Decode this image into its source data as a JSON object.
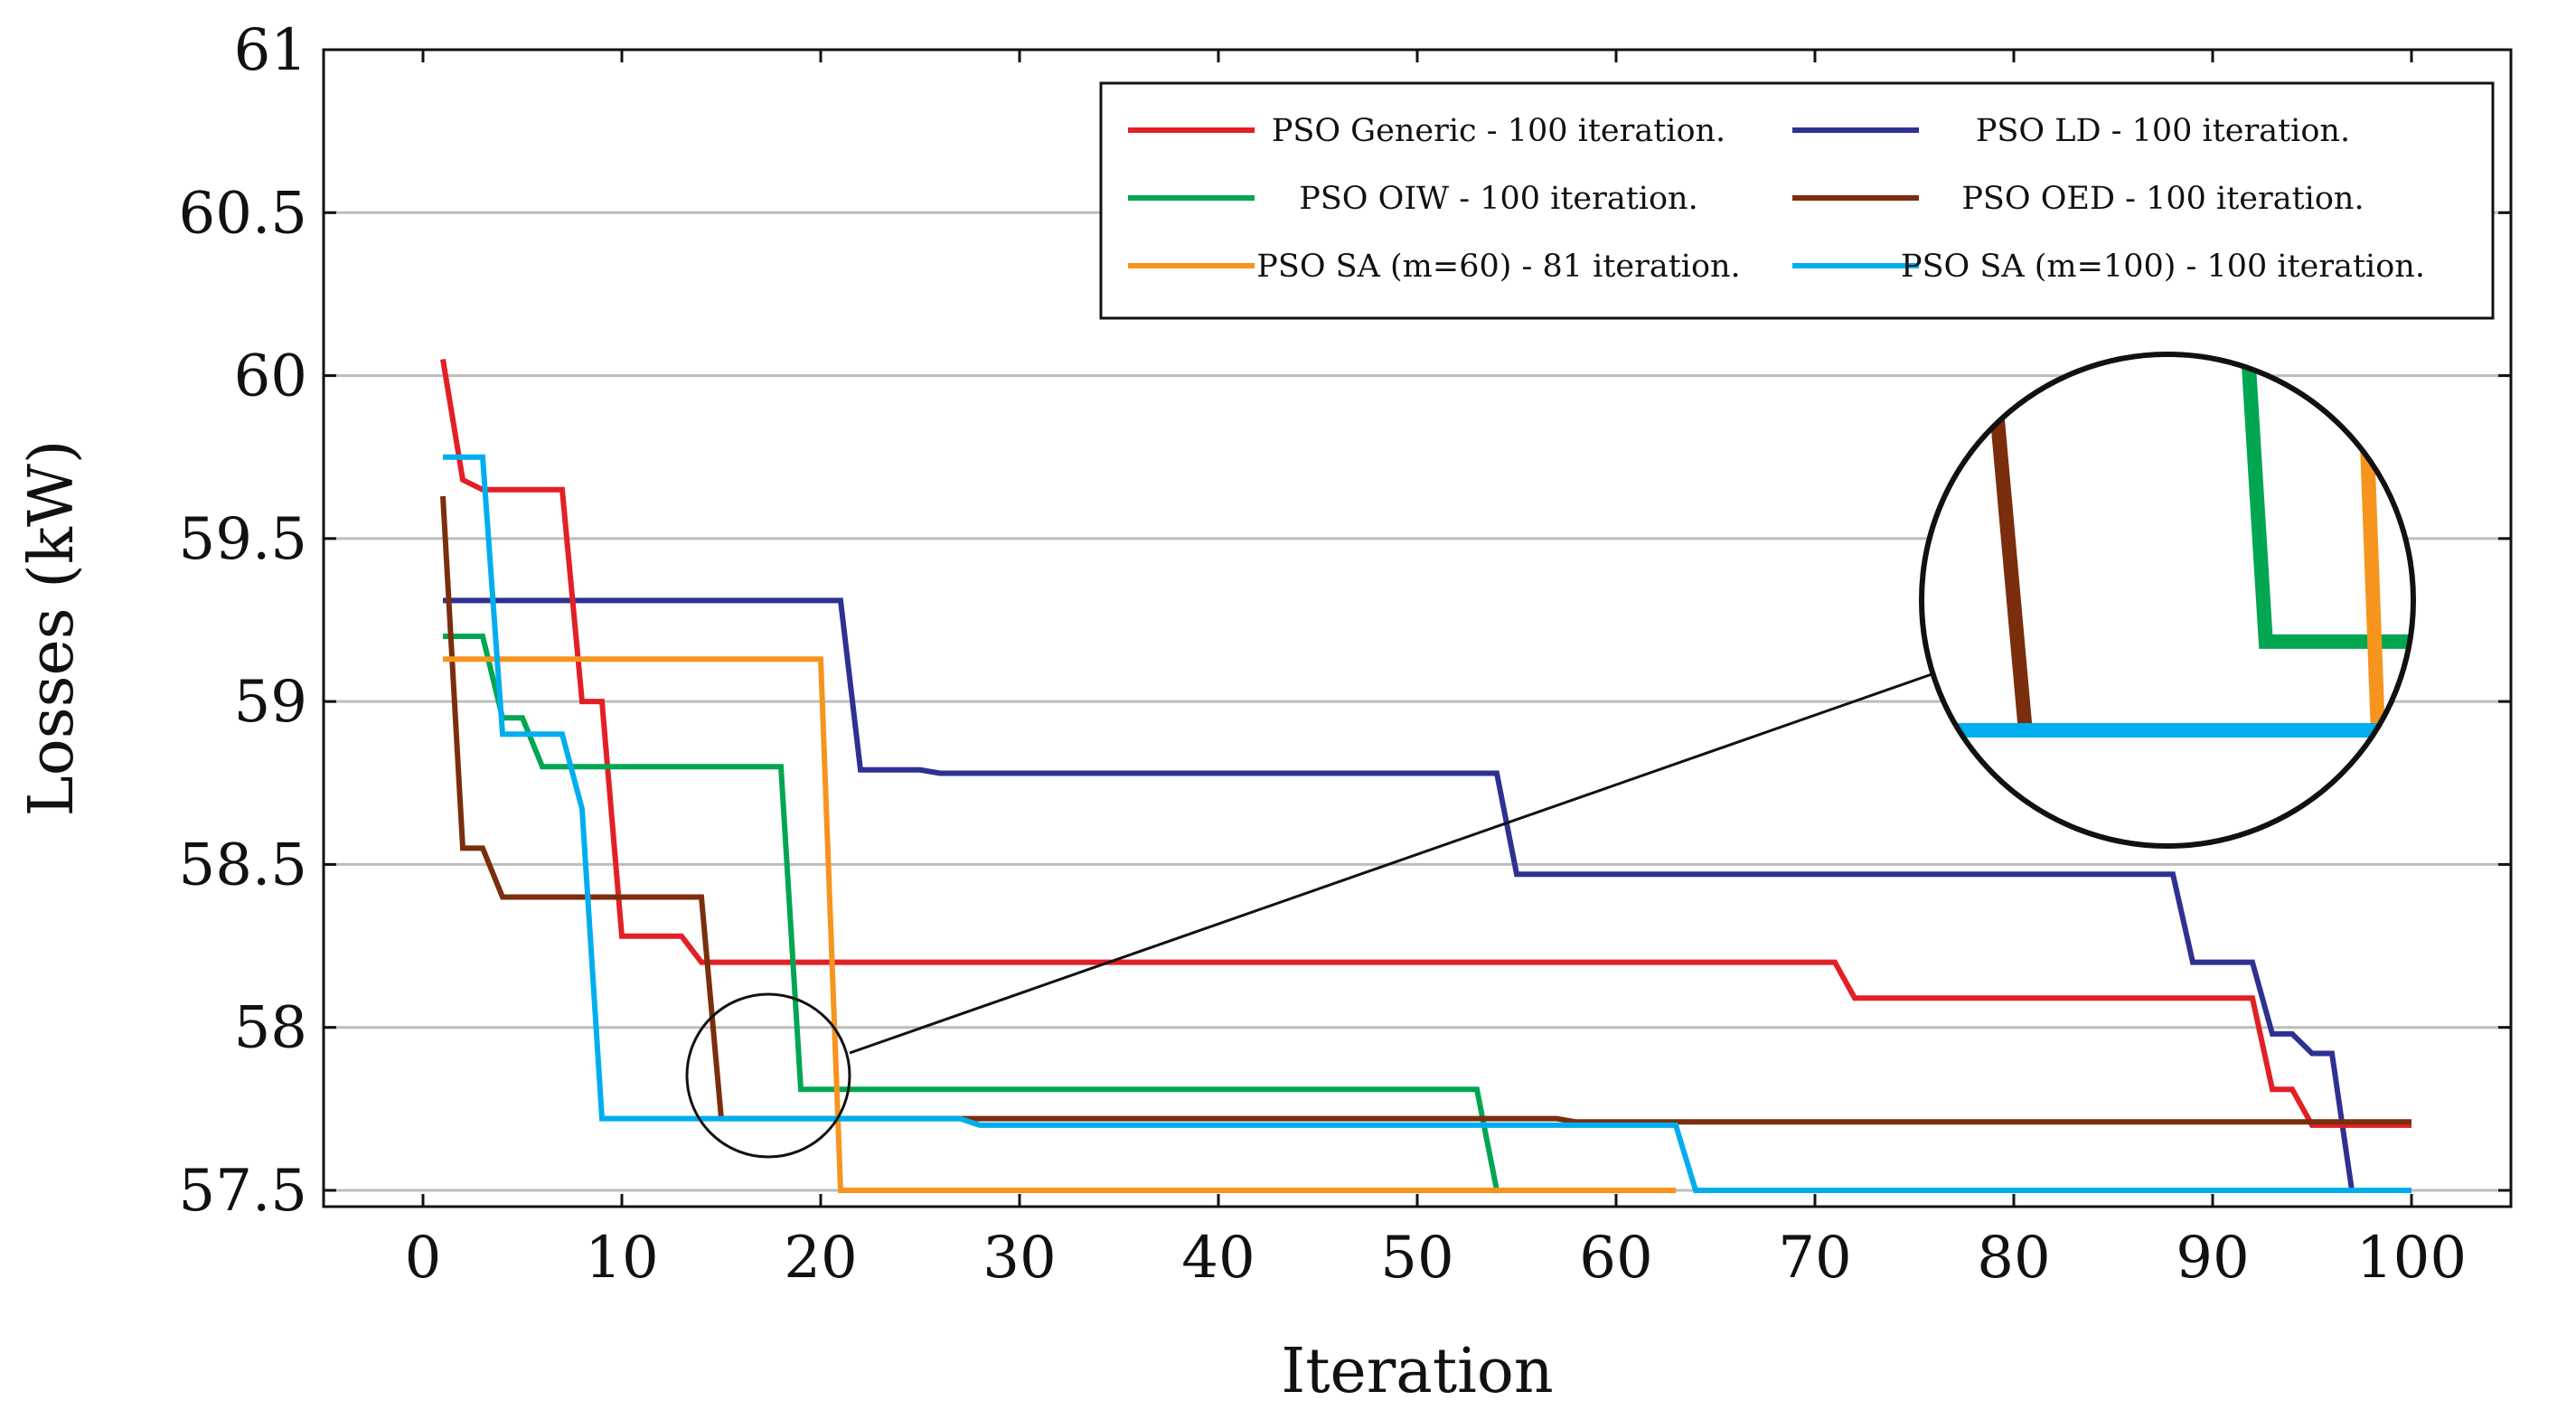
{
  "chart_data": {
    "type": "line",
    "title": "",
    "xlabel": "Iteration",
    "ylabel": "Losses (kW)",
    "xlim": [
      -5,
      105
    ],
    "ylim": [
      57.45,
      61
    ],
    "xticks": [
      0,
      10,
      20,
      30,
      40,
      50,
      60,
      70,
      80,
      90,
      100
    ],
    "yticks": [
      57.5,
      58,
      58.5,
      59,
      59.5,
      60,
      60.5,
      61
    ],
    "ytick_labels": [
      "57.5",
      "58",
      "58.5",
      "59",
      "59.5",
      "60",
      "60.5",
      "61"
    ],
    "grid": "horizontal",
    "legend_position": "top-right",
    "series": [
      {
        "name": "PSO Generic - 100 iteration.",
        "color": "#e31f26",
        "x": [
          1,
          2,
          3,
          7,
          8,
          9,
          10,
          13,
          14,
          71,
          72,
          92,
          93,
          94,
          95,
          100
        ],
        "y": [
          60.05,
          59.68,
          59.65,
          59.65,
          59.0,
          59.0,
          58.28,
          58.28,
          58.2,
          58.2,
          58.09,
          58.09,
          57.81,
          57.81,
          57.7,
          57.7
        ]
      },
      {
        "name": "PSO LD - 100 iteration.",
        "color": "#2e3192",
        "x": [
          1,
          21,
          22,
          25,
          26,
          54,
          55,
          88,
          89,
          92,
          93,
          94,
          95,
          96,
          97
        ],
        "y": [
          59.31,
          59.31,
          58.79,
          58.79,
          58.78,
          58.78,
          58.47,
          58.47,
          58.2,
          58.2,
          57.98,
          57.98,
          57.92,
          57.92,
          57.5
        ]
      },
      {
        "name": "PSO OIW - 100 iteration.",
        "color": "#00a651",
        "x": [
          1,
          3,
          4,
          5,
          6,
          18,
          19,
          53,
          54
        ],
        "y": [
          59.2,
          59.2,
          58.95,
          58.95,
          58.8,
          58.8,
          57.81,
          57.81,
          57.5
        ]
      },
      {
        "name": "PSO OED - 100 iteration.",
        "color": "#7a2e0e",
        "x": [
          1,
          2,
          3,
          4,
          14,
          15,
          15,
          57,
          58,
          100
        ],
        "y": [
          59.63,
          58.55,
          58.55,
          58.4,
          58.4,
          57.72,
          57.72,
          57.72,
          57.71,
          57.71
        ]
      },
      {
        "name": "PSO SA (m=60) - 81 iteration.",
        "color": "#f7941d",
        "x": [
          1,
          20,
          21,
          63
        ],
        "y": [
          59.13,
          59.13,
          57.5,
          57.5
        ]
      },
      {
        "name": "PSO SA (m=100) - 100 iteration.",
        "color": "#00aeef",
        "x": [
          1,
          3,
          4,
          7,
          8,
          9,
          27,
          28,
          63,
          64,
          100
        ],
        "y": [
          59.75,
          59.75,
          58.9,
          58.9,
          58.67,
          57.72,
          57.72,
          57.7,
          57.7,
          57.5,
          57.5
        ]
      }
    ]
  }
}
